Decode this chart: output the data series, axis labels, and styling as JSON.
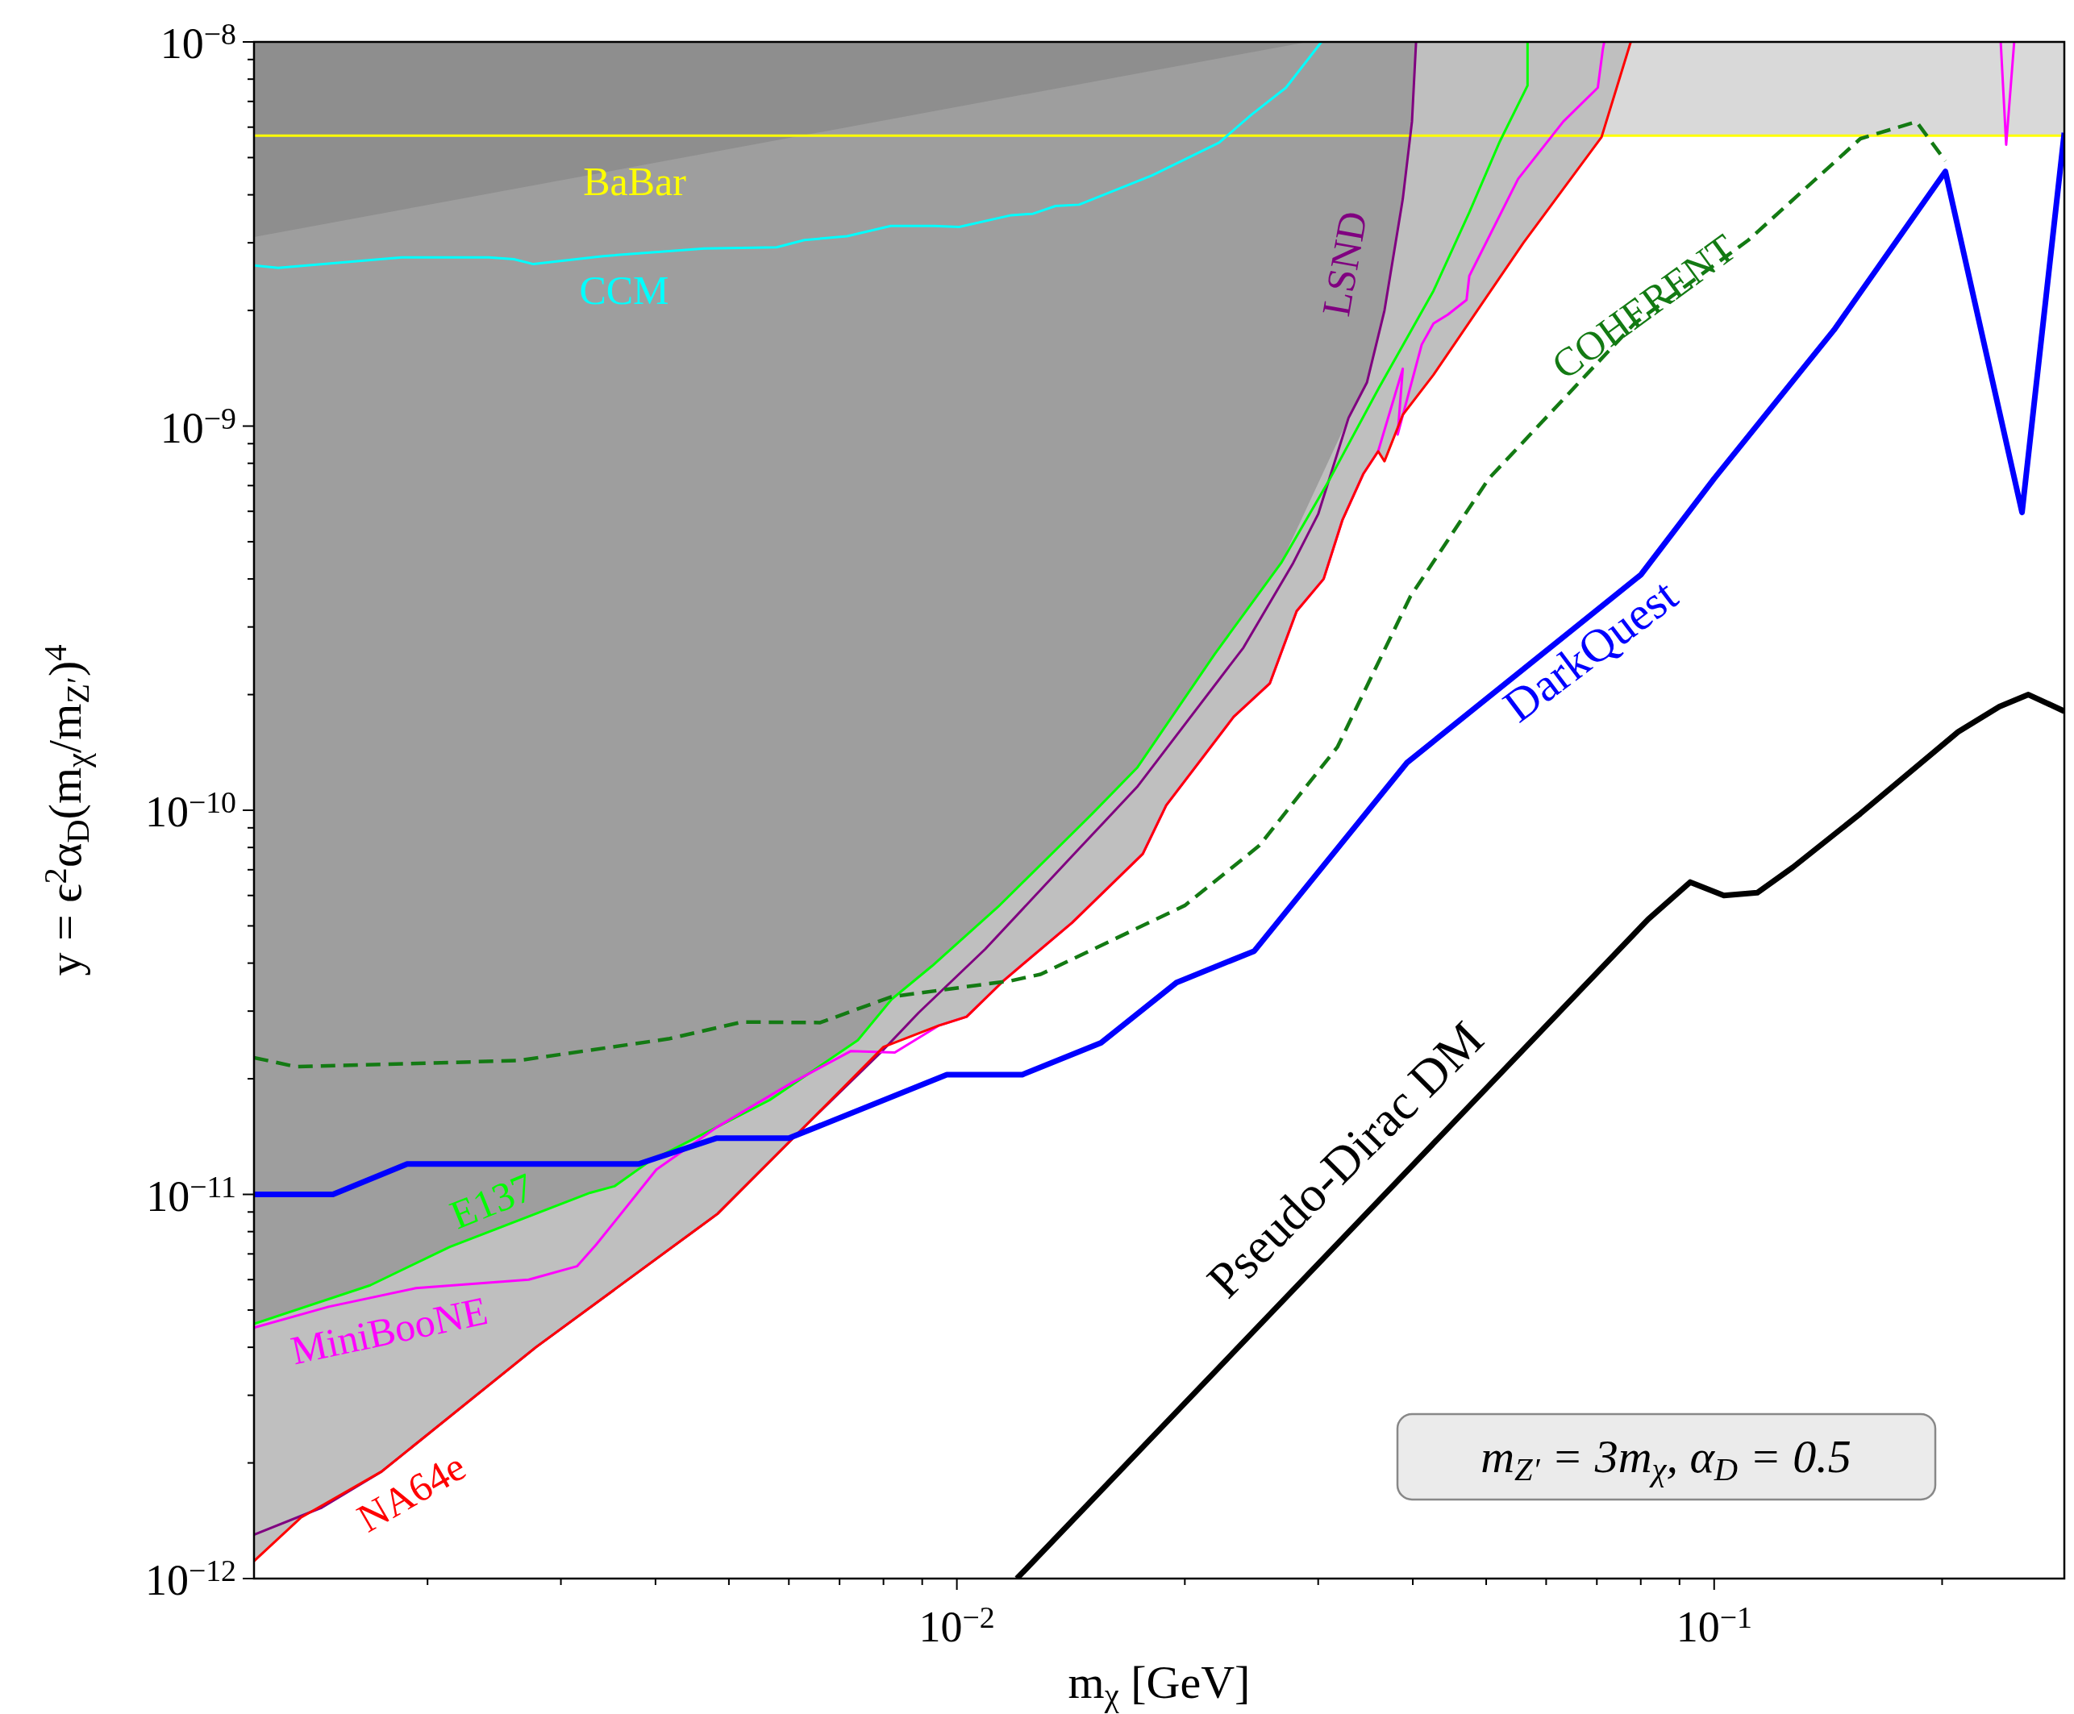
{
  "chart_data": {
    "type": "line",
    "xlabel": "m$_{χ}$ [GeV]",
    "ylabel": "y = ϵ$^{2}$α$_{D}$(m$_{χ}$/m$_{Z′}$)$^{4}$",
    "log": "xy",
    "grid": false,
    "legend": false,
    "xlim": [
      0.00118,
      0.29
    ],
    "ylim": [
      1e-12,
      1e-08
    ],
    "xticks": [
      {
        "value": 0.002,
        "label": null
      },
      {
        "value": 0.003,
        "label": null
      },
      {
        "value": 0.004,
        "label": null
      },
      {
        "value": 0.005,
        "label": null
      },
      {
        "value": 0.006,
        "label": null
      },
      {
        "value": 0.007,
        "label": null
      },
      {
        "value": 0.008,
        "label": null
      },
      {
        "value": 0.009,
        "label": null
      },
      {
        "value": 0.01,
        "label": "10$^{−2}$"
      },
      {
        "value": 0.02,
        "label": null
      },
      {
        "value": 0.03,
        "label": null
      },
      {
        "value": 0.04,
        "label": null
      },
      {
        "value": 0.05,
        "label": null
      },
      {
        "value": 0.06,
        "label": null
      },
      {
        "value": 0.07,
        "label": null
      },
      {
        "value": 0.08,
        "label": null
      },
      {
        "value": 0.09,
        "label": null
      },
      {
        "value": 0.1,
        "label": "10$^{−1}$"
      },
      {
        "value": 0.2,
        "label": null
      }
    ],
    "yticks": [
      {
        "value": 1e-12,
        "label": "10$^{−12}$"
      },
      {
        "value": 2e-12,
        "label": null
      },
      {
        "value": 3e-12,
        "label": null
      },
      {
        "value": 4e-12,
        "label": null
      },
      {
        "value": 5e-12,
        "label": null
      },
      {
        "value": 6e-12,
        "label": null
      },
      {
        "value": 7e-12,
        "label": null
      },
      {
        "value": 8e-12,
        "label": null
      },
      {
        "value": 9e-12,
        "label": null
      },
      {
        "value": 1e-11,
        "label": "10$^{−11}$"
      },
      {
        "value": 2e-11,
        "label": null
      },
      {
        "value": 3e-11,
        "label": null
      },
      {
        "value": 4e-11,
        "label": null
      },
      {
        "value": 5e-11,
        "label": null
      },
      {
        "value": 6e-11,
        "label": null
      },
      {
        "value": 7e-11,
        "label": null
      },
      {
        "value": 8e-11,
        "label": null
      },
      {
        "value": 9e-11,
        "label": null
      },
      {
        "value": 1e-10,
        "label": "10$^{−10}$"
      },
      {
        "value": 2e-10,
        "label": null
      },
      {
        "value": 3e-10,
        "label": null
      },
      {
        "value": 4e-10,
        "label": null
      },
      {
        "value": 5e-10,
        "label": null
      },
      {
        "value": 6e-10,
        "label": null
      },
      {
        "value": 7e-10,
        "label": null
      },
      {
        "value": 8e-10,
        "label": null
      },
      {
        "value": 9e-10,
        "label": null
      },
      {
        "value": 1e-09,
        "label": "10$^{−9}$"
      },
      {
        "value": 2e-09,
        "label": null
      },
      {
        "value": 3e-09,
        "label": null
      },
      {
        "value": 4e-09,
        "label": null
      },
      {
        "value": 5e-09,
        "label": null
      },
      {
        "value": 6e-09,
        "label": null
      },
      {
        "value": 7e-09,
        "label": null
      },
      {
        "value": 8e-09,
        "label": null
      },
      {
        "value": 9e-09,
        "label": null
      },
      {
        "value": 1e-08,
        "label": "10$^{−8}$"
      }
    ],
    "bands": [
      {
        "axis": "y",
        "from": 5.7e-09,
        "to": 1e-08,
        "color": "#d9d9d9"
      }
    ],
    "series": [
      {
        "name": "CCM",
        "color": "#00ffff",
        "x": [
          0.00118,
          0.00127,
          0.00185,
          0.00241,
          0.0026,
          0.00276,
          0.00341,
          0.00464,
          0.00578,
          0.00629,
          0.00716,
          0.00818,
          0.00933,
          0.01007,
          0.0118,
          0.0126,
          0.0135,
          0.0145,
          0.0181,
          0.0222,
          0.0245,
          0.0272,
          0.0303
        ],
        "values": [
          2.62e-09,
          2.58e-09,
          2.75e-09,
          2.75e-09,
          2.72e-09,
          2.64e-09,
          2.77e-09,
          2.9e-09,
          2.92e-09,
          3.05e-09,
          3.12e-09,
          3.32e-09,
          3.32e-09,
          3.3e-09,
          3.54e-09,
          3.57e-09,
          3.74e-09,
          3.77e-09,
          4.49e-09,
          5.47e-09,
          6.47e-09,
          7.6e-09,
          1e-08
        ]
      },
      {
        "name": "LSND",
        "color": "#800080",
        "x": [
          0.00118,
          0.00145,
          0.00174,
          0.00278,
          0.00483,
          0.00627,
          0.008,
          0.0089,
          0.0109,
          0.0142,
          0.0173,
          0.0239,
          0.0278,
          0.03,
          0.0329,
          0.0348,
          0.0367,
          0.0388,
          0.0399,
          0.0404
        ],
        "values": [
          1.3e-12,
          1.53e-12,
          1.9e-12,
          4e-12,
          8.9e-12,
          1.49e-11,
          2.38e-11,
          2.97e-11,
          4.35e-11,
          7.6e-11,
          1.15e-10,
          2.65e-10,
          4.4e-10,
          5.9e-10,
          1.05e-09,
          1.3e-09,
          2e-09,
          3.9e-09,
          6.2e-09,
          1e-08
        ]
      },
      {
        "name": "E137",
        "color": "#00ff00",
        "x": [
          0.00118,
          0.00168,
          0.00214,
          0.00328,
          0.00353,
          0.00393,
          0.00483,
          0.00566,
          0.0074,
          0.0082,
          0.00927,
          0.01133,
          0.0151,
          0.0173,
          0.0219,
          0.0268,
          0.0311,
          0.0361,
          0.0426,
          0.0475,
          0.0521,
          0.0567,
          0.0567
        ],
        "values": [
          4.6e-12,
          5.8e-12,
          7.3e-12,
          1.01e-11,
          1.05e-11,
          1.22e-11,
          1.5e-11,
          1.76e-11,
          2.52e-11,
          3.22e-11,
          3.93e-11,
          5.6e-11,
          9.8e-11,
          1.29e-10,
          2.55e-10,
          4.4e-10,
          7.3e-10,
          1.26e-09,
          2.25e-09,
          3.6e-09,
          5.5e-09,
          7.7e-09,
          1e-08
        ]
      },
      {
        "name": "MiniBooNE",
        "color": "#ff00ff",
        "x": [
          0.00118,
          0.00148,
          0.00193,
          0.00272,
          0.00315,
          0.00334,
          0.00401,
          0.00483,
          0.00602,
          0.00724,
          0.00828,
          0.00946,
          0.0103,
          0.01156,
          0.0142,
          0.0176,
          0.0189,
          0.0232,
          0.0259,
          0.0281,
          0.0305,
          0.0323,
          0.0344,
          0.036,
          0.0388,
          0.0382,
          0.0411,
          0.0426,
          0.0445,
          0.0471,
          0.0475,
          0.0551,
          0.0632,
          0.0702,
          0.0713,
          0.0716,
          null,
          0.239,
          0.243,
          0.249
        ],
        "values": [
          4.5e-12,
          5.1e-12,
          5.7e-12,
          6e-12,
          6.5e-12,
          7.4e-12,
          1.16e-11,
          1.5e-11,
          1.94e-11,
          2.36e-11,
          2.34e-11,
          2.75e-11,
          2.9e-11,
          3.62e-11,
          5.1e-11,
          7.7e-11,
          1.03e-10,
          1.75e-10,
          2.14e-10,
          3.3e-10,
          4e-10,
          5.7e-10,
          7.5e-10,
          8.6e-10,
          1.41e-09,
          9.5e-10,
          1.63e-09,
          1.85e-09,
          1.95e-09,
          2.13e-09,
          2.46e-09,
          4.4e-09,
          6.2e-09,
          7.6e-09,
          9.6e-09,
          1e-08,
          null,
          1e-08,
          5.4e-09,
          1e-08
        ]
      },
      {
        "name": "NA64e",
        "color": "#ff0000",
        "x": [
          0.00118,
          0.00136,
          0.00174,
          0.00278,
          0.00483,
          0.00627,
          0.008,
          0.00946,
          0.0103,
          0.01156,
          0.0142,
          0.0176,
          0.0189,
          0.0232,
          0.0259,
          0.0281,
          0.0305,
          0.0323,
          0.0344,
          0.036,
          0.0367,
          0.0388,
          0.0426,
          0.056,
          0.071,
          0.0776
        ],
        "values": [
          1.11e-12,
          1.44e-12,
          1.9e-12,
          4e-12,
          8.9e-12,
          1.49e-11,
          2.42e-11,
          2.75e-11,
          2.9e-11,
          3.62e-11,
          5.1e-11,
          7.7e-11,
          1.03e-10,
          1.75e-10,
          2.14e-10,
          3.3e-10,
          4e-10,
          5.7e-10,
          7.5e-10,
          8.6e-10,
          8.1e-10,
          1.07e-09,
          1.36e-09,
          3e-09,
          5.65e-09,
          1e-08
        ]
      },
      {
        "name": "COHERENT",
        "color": "#137a13",
        "line_style": "dashed",
        "x": [
          0.00118,
          0.00134,
          0.00263,
          0.00416,
          0.0052,
          0.0066,
          0.0082,
          0.0118,
          0.0129,
          0.02,
          0.0251,
          0.0318,
          0.0397,
          0.0504,
          0.0785,
          0.111,
          0.156,
          0.185,
          0.202
        ],
        "values": [
          2.27e-11,
          2.15e-11,
          2.23e-11,
          2.54e-11,
          2.81e-11,
          2.8e-11,
          3.27e-11,
          3.6e-11,
          3.74e-11,
          5.65e-11,
          8.1e-11,
          1.46e-10,
          3.6e-10,
          7.3e-10,
          1.85e-09,
          3.05e-09,
          5.6e-09,
          6.2e-09,
          4.9e-09
        ]
      },
      {
        "name": "DarkQuest",
        "color": "#0000ff",
        "x": [
          0.00118,
          0.0015,
          0.00188,
          0.0038,
          0.00481,
          0.006,
          0.0097,
          0.0122,
          0.0155,
          0.0195,
          0.0247,
          0.0393,
          0.08,
          0.1,
          0.144,
          0.202,
          0.255,
          0.29
        ],
        "values": [
          1e-11,
          1e-11,
          1.2e-11,
          1.2e-11,
          1.4e-11,
          1.4e-11,
          2.05e-11,
          2.05e-11,
          2.48e-11,
          3.56e-11,
          4.3e-11,
          1.33e-10,
          4.1e-10,
          7.3e-10,
          1.78e-09,
          4.6e-09,
          5.96e-10,
          5.8e-09
        ]
      },
      {
        "name": "Pseudo-Dirac DM",
        "color": "#000000",
        "x": [
          0.012,
          0.0818,
          0.093,
          0.103,
          0.114,
          0.127,
          0.156,
          0.21,
          0.238,
          0.26,
          0.29
        ],
        "values": [
          1e-12,
          5.2e-11,
          6.5e-11,
          6e-11,
          6.1e-11,
          7.1e-11,
          9.8e-11,
          1.6e-10,
          1.86e-10,
          2e-10,
          1.81e-10
        ]
      }
    ],
    "ref_lines": [
      {
        "axis": "y",
        "value": 5.7e-09,
        "label": "BaBar",
        "color": "#ffff00"
      }
    ],
    "annotations": [
      "m$_{Z′}$ = 3m$_{χ}$, α$_{D}$ = 0.5"
    ]
  }
}
